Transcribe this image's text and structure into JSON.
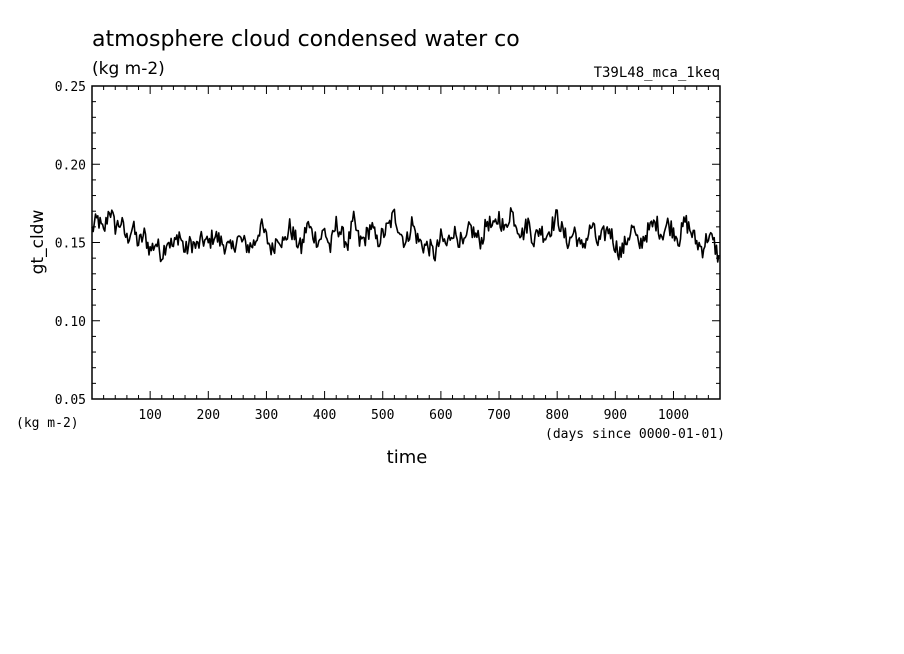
{
  "chart_data": {
    "type": "line",
    "title": "atmosphere cloud condensed water co",
    "units": "(kg m-2)",
    "run_label": "T39L48_mca_1keq",
    "xlabel": "time",
    "x_units": "(days since 0000-01-01)",
    "ylabel": "gt_cldw",
    "y_units": "(kg m-2)",
    "xlim": [
      0,
      1080
    ],
    "ylim": [
      0.05,
      0.25
    ],
    "x_ticks": [
      100,
      200,
      300,
      400,
      500,
      600,
      700,
      800,
      900,
      1000
    ],
    "x_tick_labels": [
      "100",
      "200",
      "300",
      "400",
      "500",
      "600",
      "700",
      "800",
      "900",
      "1000"
    ],
    "y_ticks": [
      0.05,
      0.1,
      0.15,
      0.2,
      0.25
    ],
    "y_tick_labels": [
      "0.05",
      "0.10",
      "0.15",
      "0.20",
      "0.25"
    ],
    "grid": false,
    "series": [
      {
        "color": "#000000",
        "x": [
          0,
          10,
          20,
          30,
          40,
          50,
          60,
          70,
          80,
          90,
          100,
          110,
          120,
          130,
          140,
          150,
          160,
          170,
          180,
          190,
          200,
          210,
          220,
          230,
          240,
          250,
          260,
          270,
          280,
          290,
          300,
          310,
          320,
          330,
          340,
          350,
          360,
          370,
          380,
          390,
          400,
          410,
          420,
          430,
          440,
          450,
          460,
          470,
          480,
          490,
          500,
          510,
          520,
          530,
          540,
          550,
          560,
          570,
          580,
          590,
          600,
          610,
          620,
          630,
          640,
          650,
          660,
          670,
          680,
          690,
          700,
          710,
          720,
          730,
          740,
          750,
          760,
          770,
          780,
          790,
          800,
          810,
          820,
          830,
          840,
          850,
          860,
          870,
          880,
          890,
          900,
          910,
          920,
          930,
          940,
          950,
          960,
          970,
          980,
          990,
          1000,
          1010,
          1020,
          1030,
          1040,
          1050,
          1060,
          1070,
          1078
        ],
        "y": [
          0.158,
          0.165,
          0.156,
          0.172,
          0.16,
          0.163,
          0.152,
          0.16,
          0.149,
          0.155,
          0.145,
          0.15,
          0.142,
          0.152,
          0.147,
          0.156,
          0.144,
          0.15,
          0.147,
          0.152,
          0.149,
          0.155,
          0.151,
          0.148,
          0.145,
          0.153,
          0.15,
          0.147,
          0.15,
          0.161,
          0.153,
          0.145,
          0.155,
          0.149,
          0.16,
          0.152,
          0.146,
          0.162,
          0.155,
          0.151,
          0.158,
          0.146,
          0.162,
          0.155,
          0.149,
          0.164,
          0.15,
          0.153,
          0.161,
          0.15,
          0.155,
          0.16,
          0.168,
          0.157,
          0.149,
          0.163,
          0.152,
          0.148,
          0.147,
          0.142,
          0.153,
          0.148,
          0.158,
          0.153,
          0.147,
          0.16,
          0.154,
          0.151,
          0.164,
          0.158,
          0.167,
          0.157,
          0.171,
          0.162,
          0.155,
          0.163,
          0.151,
          0.159,
          0.154,
          0.16,
          0.167,
          0.156,
          0.15,
          0.158,
          0.146,
          0.152,
          0.161,
          0.149,
          0.155,
          0.159,
          0.148,
          0.143,
          0.152,
          0.16,
          0.147,
          0.154,
          0.159,
          0.163,
          0.155,
          0.162,
          0.158,
          0.152,
          0.164,
          0.157,
          0.15,
          0.146,
          0.155,
          0.149,
          0.14
        ]
      }
    ]
  }
}
